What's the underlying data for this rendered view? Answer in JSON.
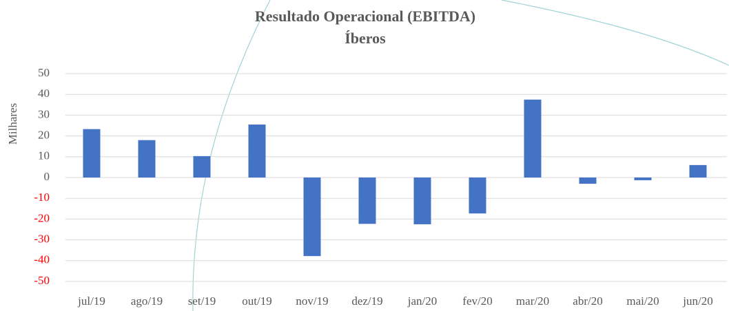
{
  "chart_data": {
    "type": "bar",
    "title": "Resultado Operacional (EBITDA)",
    "subtitle": "Íberos",
    "y_label": "Milhares",
    "categories": [
      "jul/19",
      "ago/19",
      "set/19",
      "out/19",
      "nov/19",
      "dez/19",
      "jan/20",
      "fev/20",
      "mar/20",
      "abr/20",
      "mai/20",
      "jun/20"
    ],
    "values": [
      23.3,
      18,
      10.3,
      25.5,
      -37.8,
      -22.3,
      -22.5,
      -17.3,
      37.5,
      -3,
      -1.3,
      6
    ],
    "color": "#4472c4",
    "negative_tick_color": "#ff0000",
    "ylim": [
      -50,
      50
    ],
    "yticks": [
      -50,
      -40,
      -30,
      -20,
      -10,
      0,
      10,
      20,
      30,
      40,
      50
    ],
    "grid": true
  }
}
